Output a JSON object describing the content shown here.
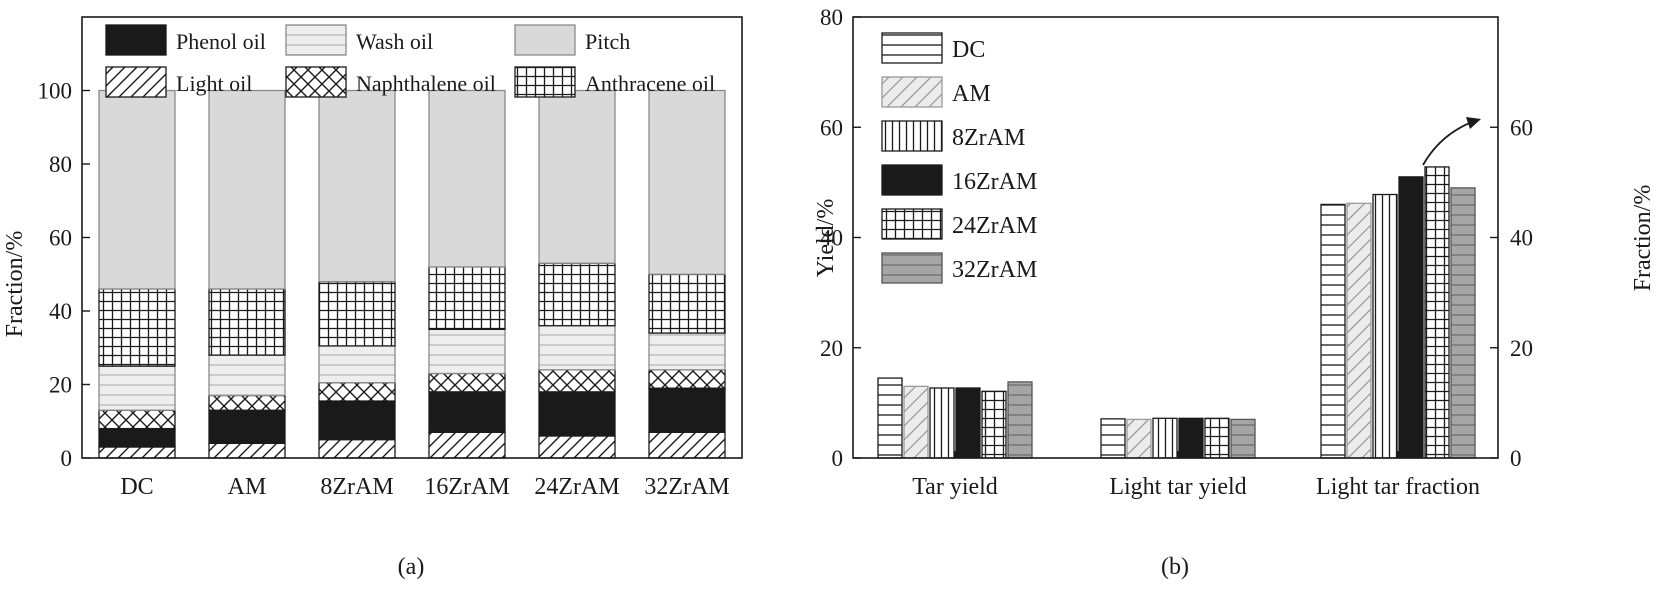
{
  "chart_data": [
    {
      "panel": "a",
      "type": "bar",
      "stacked": true,
      "caption": "(a)",
      "ylabel": "Fraction/%",
      "xlabel": "",
      "ylim": [
        0,
        120
      ],
      "yticks": [
        0,
        20,
        40,
        60,
        80,
        100
      ],
      "categories": [
        "DC",
        "AM",
        "8ZrAM",
        "16ZrAM",
        "24ZrAM",
        "32ZrAM"
      ],
      "legend": [
        "Phenol oil",
        "Wash oil",
        "Pitch",
        "Light oil",
        "Naphthalene oil",
        "Anthracene oil"
      ],
      "series": [
        {
          "name": "Light oil",
          "pattern": "diag",
          "values": [
            3,
            4,
            5,
            7,
            6,
            7
          ]
        },
        {
          "name": "Phenol oil",
          "pattern": "black",
          "values": [
            5,
            9,
            10.5,
            11,
            12,
            12
          ]
        },
        {
          "name": "Naphthalene oil",
          "pattern": "cross",
          "values": [
            5,
            4,
            5,
            5,
            6,
            5
          ]
        },
        {
          "name": "Wash oil",
          "pattern": "hlines",
          "values": [
            12,
            11,
            10,
            12,
            12,
            10
          ]
        },
        {
          "name": "Anthracene oil",
          "pattern": "grid",
          "values": [
            21,
            18,
            17.5,
            17,
            17,
            16
          ]
        },
        {
          "name": "Pitch",
          "pattern": "gray",
          "values": [
            54,
            54,
            52,
            48,
            47,
            50
          ]
        }
      ]
    },
    {
      "panel": "b",
      "type": "bar",
      "caption": "(b)",
      "ylabel": "Yield/%",
      "ylabel_right": "Fraction/%",
      "ylim": [
        0,
        80
      ],
      "yticks": [
        0,
        20,
        40,
        60,
        80
      ],
      "ylim_right": [
        0,
        80
      ],
      "yticks_right": [
        0,
        20,
        40,
        60
      ],
      "categories": [
        "Tar yield",
        "Light tar yield",
        "Light tar fraction"
      ],
      "series": [
        {
          "name": "DC",
          "pattern": "hlines",
          "values": [
            14.5,
            7.1,
            46
          ]
        },
        {
          "name": "AM",
          "pattern": "lightdiag",
          "values": [
            13,
            7,
            46.2
          ]
        },
        {
          "name": "8ZrAM",
          "pattern": "vlines",
          "values": [
            12.7,
            7.2,
            47.8
          ]
        },
        {
          "name": "16ZrAM",
          "pattern": "black",
          "values": [
            12.7,
            7.2,
            51
          ]
        },
        {
          "name": "24ZrAM",
          "pattern": "grid",
          "values": [
            12.1,
            7.2,
            52.8
          ]
        },
        {
          "name": "32ZrAM",
          "pattern": "grayh",
          "values": [
            13.8,
            7,
            49
          ]
        }
      ]
    }
  ]
}
